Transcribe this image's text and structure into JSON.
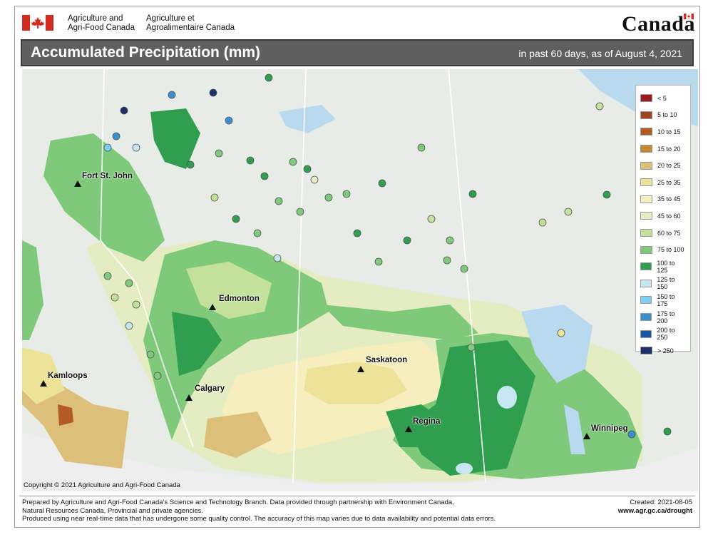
{
  "header": {
    "agency_en_line1": "Agriculture and",
    "agency_en_line2": "Agri-Food Canada",
    "agency_fr_line1": "Agriculture et",
    "agency_fr_line2": "Agroalimentaire Canada",
    "wordmark": "Canada",
    "flag_icon": "canada-flag-icon"
  },
  "title": {
    "main": "Accumulated Precipitation (mm)",
    "sub": "in past 60 days, as of August 4, 2021"
  },
  "cities": [
    {
      "name": "Fort St. John"
    },
    {
      "name": "Edmonton"
    },
    {
      "name": "Kamloops"
    },
    {
      "name": "Calgary"
    },
    {
      "name": "Saskatoon"
    },
    {
      "name": "Regina"
    },
    {
      "name": "Winnipeg"
    }
  ],
  "legend": [
    {
      "label": "< 5",
      "color": "#9b1c1c"
    },
    {
      "label": "5 to 10",
      "color": "#a0431f"
    },
    {
      "label": "10 to 15",
      "color": "#b35a25"
    },
    {
      "label": "15 to 20",
      "color": "#c8862e"
    },
    {
      "label": "20 to 25",
      "color": "#dcc07a"
    },
    {
      "label": "25 to 35",
      "color": "#ece298"
    },
    {
      "label": "35 to 45",
      "color": "#f6efbd"
    },
    {
      "label": "45 to 60",
      "color": "#e3edc1"
    },
    {
      "label": "60 to 75",
      "color": "#c3e19a"
    },
    {
      "label": "75 to 100",
      "color": "#7fc97a"
    },
    {
      "label": "100 to 125",
      "color": "#2f9e4f"
    },
    {
      "label": "125 to 150",
      "color": "#c6e6f1"
    },
    {
      "label": "150 to 175",
      "color": "#7ed0f2"
    },
    {
      "label": "175 to 200",
      "color": "#3a8fce"
    },
    {
      "label": "200 to 250",
      "color": "#1657a6"
    },
    {
      "label": "> 250",
      "color": "#1d2f6a"
    }
  ],
  "copyright": "Copyright © 2021 Agriculture and Agri-Food Canada",
  "footer": {
    "line1": "Prepared by Agriculture and Agri-Food Canada's Science and Technology Branch. Data provided through partnership with Environment Canada,",
    "line2": "Natural Resources Canada, Provincial and private agencies.",
    "line3": "Produced using near real-time data that has undergone some quality control. The accuracy of this map varies due to data availability and potential data errors.",
    "created": "Created: 2021-08-05",
    "url": "www.agr.gc.ca/drought"
  }
}
